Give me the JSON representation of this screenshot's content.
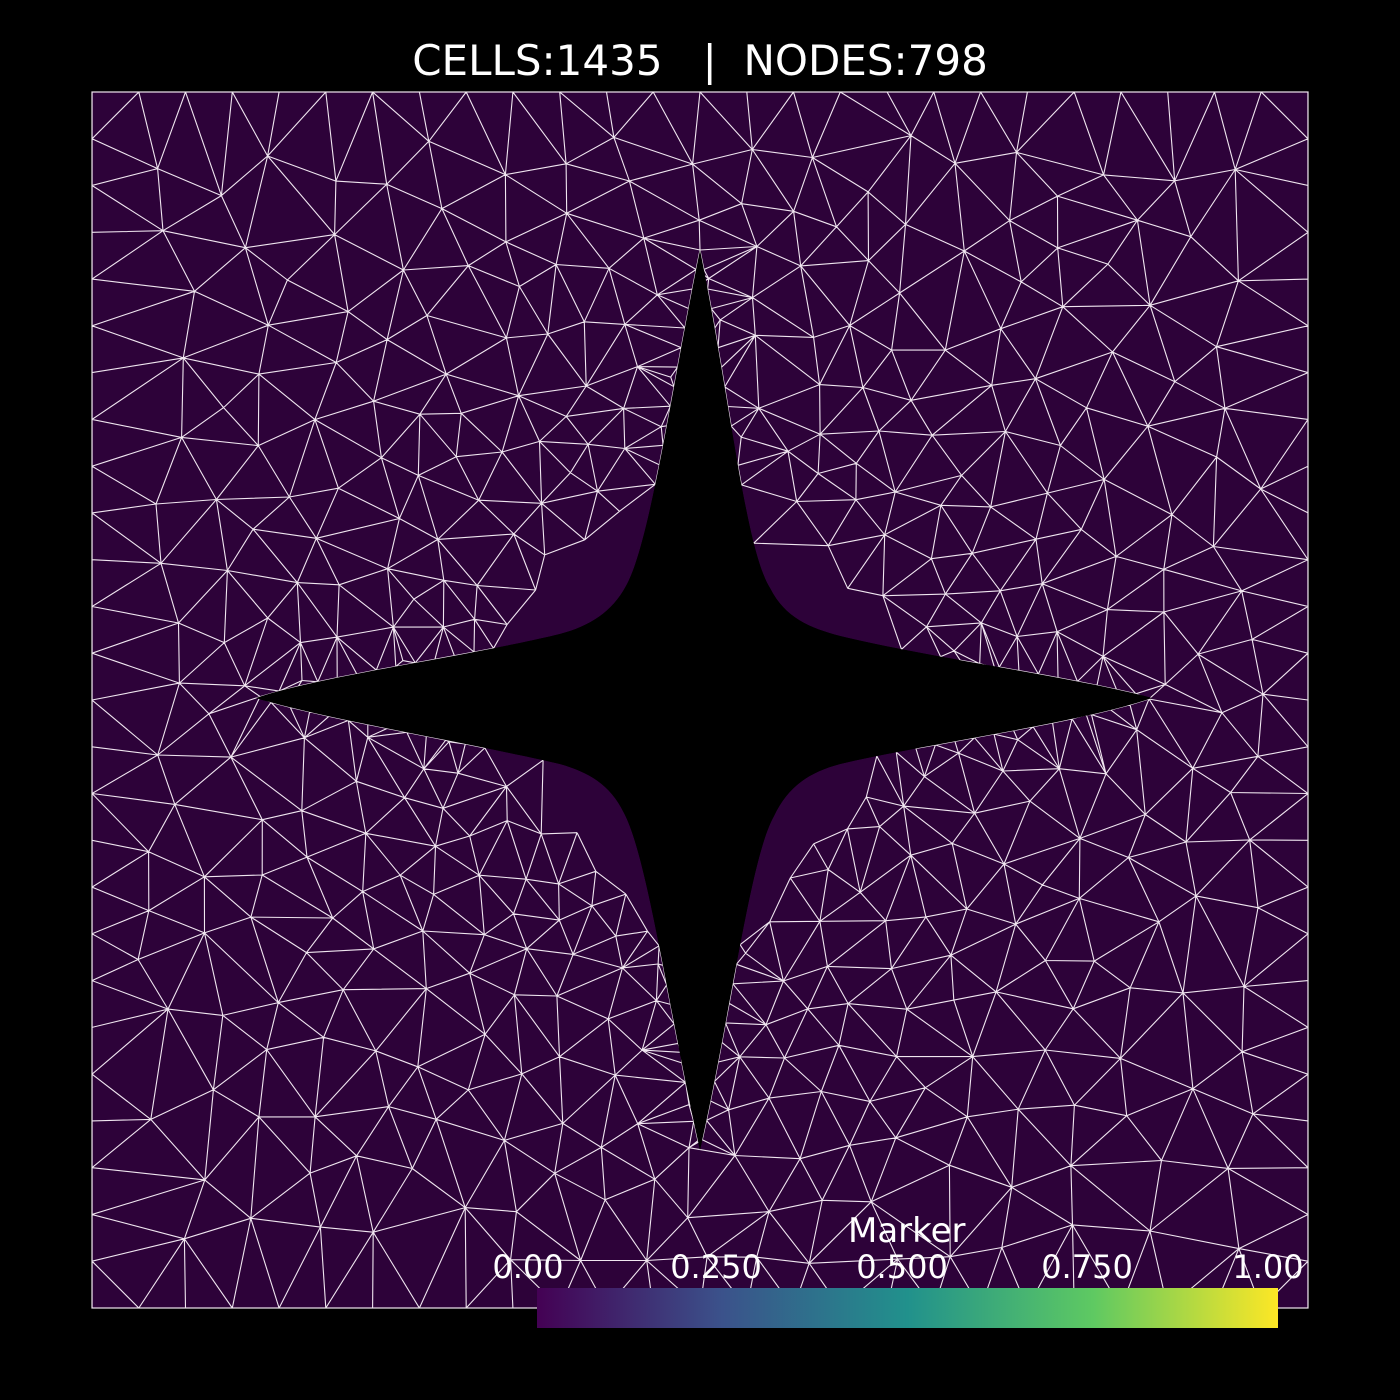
{
  "title": "CELLS:1435   |  NODES:798",
  "colorbar": {
    "title": "Marker",
    "ticks": [
      "0.00",
      "0.250",
      "0.500",
      "0.750",
      "1.00"
    ],
    "colormap": "viridis",
    "range": [
      0,
      1
    ]
  },
  "colors": {
    "background": "#000000",
    "mesh_fill": "#2d0239",
    "mesh_edges": "#f0e6f0",
    "text": "#ffffff",
    "viridis_stops": [
      "#440154",
      "#3b528b",
      "#21918c",
      "#5ec962",
      "#fde725"
    ]
  },
  "mesh": {
    "cells": 1435,
    "nodes": 798,
    "hole_shape": "four-pointed star",
    "marker_value": 0.0
  }
}
